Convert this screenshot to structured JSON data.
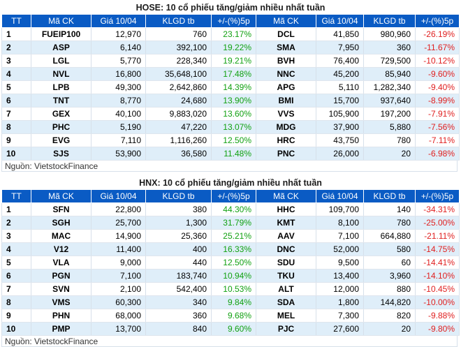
{
  "hose": {
    "title": "HOSE: 10 cổ phiếu tăng/giảm nhiều nhất tuần",
    "headers": [
      "TT",
      "Mã CK",
      "Giá 10/04",
      "KLGD tb",
      "+/-(%)5p",
      "Mã CK",
      "Giá 10/04",
      "KLGD tb",
      "+/-(%)5p"
    ],
    "rows": [
      [
        "1",
        "FUEIP100",
        "12,970",
        "760",
        "23.17%",
        "DCL",
        "41,850",
        "980,960",
        "-26.19%"
      ],
      [
        "2",
        "ASP",
        "6,140",
        "392,100",
        "19.22%",
        "SMA",
        "7,950",
        "360",
        "-11.67%"
      ],
      [
        "3",
        "LGL",
        "5,770",
        "228,340",
        "19.21%",
        "BVH",
        "76,400",
        "729,500",
        "-10.12%"
      ],
      [
        "4",
        "NVL",
        "16,800",
        "35,648,100",
        "17.48%",
        "NNC",
        "45,200",
        "85,940",
        "-9.60%"
      ],
      [
        "5",
        "LPB",
        "49,300",
        "2,642,860",
        "14.39%",
        "APG",
        "5,110",
        "1,282,340",
        "-9.40%"
      ],
      [
        "6",
        "TNT",
        "8,770",
        "24,680",
        "13.90%",
        "BMI",
        "15,700",
        "937,640",
        "-8.99%"
      ],
      [
        "7",
        "GEX",
        "40,100",
        "9,883,020",
        "13.60%",
        "VVS",
        "105,900",
        "197,200",
        "-7.91%"
      ],
      [
        "8",
        "PHC",
        "5,190",
        "47,220",
        "13.07%",
        "MDG",
        "37,900",
        "5,880",
        "-7.56%"
      ],
      [
        "9",
        "EVG",
        "7,110",
        "1,116,260",
        "12.50%",
        "HRC",
        "43,750",
        "780",
        "-7.11%"
      ],
      [
        "10",
        "SJS",
        "53,900",
        "36,580",
        "11.48%",
        "PNC",
        "26,000",
        "20",
        "-6.98%"
      ]
    ],
    "source": "Nguồn: VietstockFinance"
  },
  "hnx": {
    "title": "HNX: 10 cổ phiếu tăng/giảm nhiều nhất tuần",
    "headers": [
      "TT",
      "Mã CK",
      "Giá 10/04",
      "KLGD tb",
      "+/-(%)5p",
      "Mã CK",
      "Giá 10/04",
      "KLGD tb",
      "+/-(%)5p"
    ],
    "rows": [
      [
        "1",
        "SFN",
        "22,800",
        "380",
        "44.30%",
        "HHC",
        "109,700",
        "140",
        "-34.31%"
      ],
      [
        "2",
        "SGH",
        "25,700",
        "1,300",
        "31.79%",
        "KMT",
        "8,100",
        "780",
        "-25.00%"
      ],
      [
        "3",
        "MAC",
        "14,900",
        "25,360",
        "25.21%",
        "AAV",
        "7,100",
        "664,880",
        "-21.11%"
      ],
      [
        "4",
        "V12",
        "11,400",
        "400",
        "16.33%",
        "DNC",
        "52,000",
        "580",
        "-14.75%"
      ],
      [
        "5",
        "VLA",
        "9,000",
        "440",
        "12.50%",
        "SDU",
        "9,500",
        "60",
        "-14.41%"
      ],
      [
        "6",
        "PGN",
        "7,100",
        "183,740",
        "10.94%",
        "TKU",
        "13,400",
        "3,960",
        "-14.10%"
      ],
      [
        "7",
        "SVN",
        "2,100",
        "542,400",
        "10.53%",
        "ALT",
        "12,000",
        "880",
        "-10.45%"
      ],
      [
        "8",
        "VMS",
        "60,300",
        "340",
        "9.84%",
        "SDA",
        "1,800",
        "144,820",
        "-10.00%"
      ],
      [
        "9",
        "PHN",
        "68,000",
        "360",
        "9.68%",
        "MEL",
        "7,300",
        "820",
        "-9.88%"
      ],
      [
        "10",
        "PMP",
        "13,700",
        "840",
        "9.60%",
        "PJC",
        "27,600",
        "20",
        "-9.80%"
      ]
    ],
    "source": "Nguồn: VietstockFinance"
  },
  "colors": {
    "header_bg": "#0a5bc4",
    "row_alt": "#dfeef9",
    "up": "#12a112",
    "down": "#e02020"
  }
}
